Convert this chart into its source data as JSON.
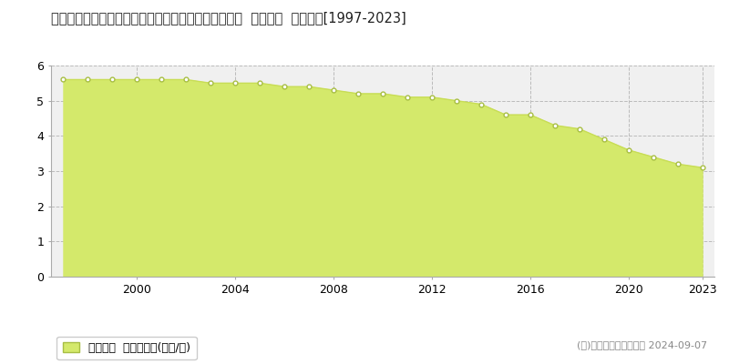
{
  "title": "岩手県九戸郡軽米町大字軽米第３地割字中坊２８番３  基準地価  地価推移[1997-2023]",
  "years": [
    1997,
    1998,
    1999,
    2000,
    2001,
    2002,
    2003,
    2004,
    2005,
    2006,
    2007,
    2008,
    2009,
    2010,
    2011,
    2012,
    2013,
    2014,
    2015,
    2016,
    2017,
    2018,
    2019,
    2020,
    2021,
    2022,
    2023
  ],
  "values": [
    5.6,
    5.6,
    5.6,
    5.6,
    5.6,
    5.6,
    5.5,
    5.5,
    5.5,
    5.4,
    5.4,
    5.3,
    5.2,
    5.2,
    5.1,
    5.1,
    5.0,
    4.9,
    4.6,
    4.6,
    4.3,
    4.2,
    3.9,
    3.6,
    3.4,
    3.2,
    3.1
  ],
  "fill_color": "#d4e96b",
  "line_color": "#c8dd55",
  "marker_color": "#ffffff",
  "marker_edge_color": "#a8be44",
  "background_color": "#ffffff",
  "plot_bg_color": "#f0f0f0",
  "grid_color": "#bbbbbb",
  "ylim": [
    0,
    6
  ],
  "yticks": [
    0,
    1,
    2,
    3,
    4,
    5,
    6
  ],
  "xtick_labels": [
    2000,
    2004,
    2008,
    2012,
    2016,
    2020,
    2023
  ],
  "legend_label": "基準地価  平均坪単価(万円/坪)",
  "copyright_text": "(Ｃ)土地価格ドットコム 2024-09-07",
  "title_fontsize": 10.5,
  "axis_fontsize": 9,
  "legend_fontsize": 9,
  "copyright_fontsize": 8
}
